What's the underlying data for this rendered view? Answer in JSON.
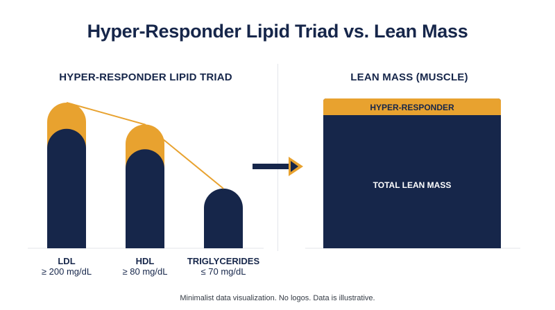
{
  "title": "Hyper-Responder Lipid Triad vs. Lean Mass",
  "footer": "Minimalist data visualization. No logos. Data is illustrative.",
  "colors": {
    "navy": "#16264a",
    "gold": "#e8a22f",
    "divider": "#e3e5ea"
  },
  "arrow_icon": "right-arrow-icon",
  "chart_data": [
    {
      "type": "bar",
      "title": "HYPER-RESPONDER LIPID TRIAD",
      "categories": [
        "LDL",
        "HDL",
        "TRIGLYCERIDES"
      ],
      "category_values": [
        "≥ 200 mg/dL",
        "≥ 80 mg/dL",
        "≤ 70 mg/dL"
      ],
      "series": [
        {
          "values": [
            0.82,
            0.68,
            0.41
          ]
        },
        {
          "values": [
            0.18,
            0.17,
            0.0
          ]
        }
      ],
      "trend_line": true,
      "grid": false
    },
    {
      "type": "bar",
      "title": "LEAN MASS (MUSCLE)",
      "segments": [
        "HYPER-RESPONDER",
        "TOTAL LEAN MASS"
      ]
    }
  ]
}
